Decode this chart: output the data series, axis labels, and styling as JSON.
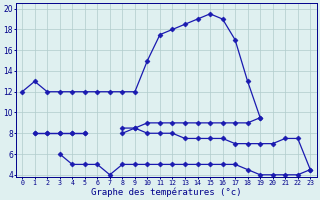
{
  "title": "Graphe des températures (°c)",
  "bg_color": "#dff0f0",
  "line_color": "#1a1ab0",
  "grid_color": "#b0cccc",
  "hours": [
    0,
    1,
    2,
    3,
    4,
    5,
    6,
    7,
    8,
    9,
    10,
    11,
    12,
    13,
    14,
    15,
    16,
    17,
    18,
    19,
    20,
    21,
    22,
    23
  ],
  "temp_max": [
    12,
    13,
    12,
    12,
    12,
    12,
    12,
    12,
    12,
    12,
    15,
    17.5,
    18,
    18.5,
    19,
    19.5,
    19,
    17,
    13,
    9.5,
    null,
    null,
    null,
    null
  ],
  "temp_min": [
    null,
    null,
    null,
    6,
    5,
    5,
    5,
    4,
    5,
    5,
    5,
    5,
    5,
    5,
    5,
    5,
    5,
    5,
    4.5,
    4,
    4,
    4,
    4,
    4.5
  ],
  "temp_avg_hi": [
    null,
    8,
    8,
    8,
    8,
    8,
    null,
    null,
    8.5,
    8.5,
    9,
    9,
    9,
    9,
    9,
    9,
    9,
    9,
    9,
    9.5,
    null,
    null,
    null,
    null
  ],
  "temp_avg_lo": [
    null,
    8,
    8,
    8,
    8,
    8,
    null,
    null,
    8,
    8.5,
    8,
    8,
    8,
    7.5,
    7.5,
    7.5,
    7.5,
    7,
    7,
    7,
    7,
    7.5,
    7.5,
    4.5
  ],
  "ylim_min": 4,
  "ylim_max": 20,
  "yticks": [
    4,
    6,
    8,
    10,
    12,
    14,
    16,
    18,
    20
  ]
}
